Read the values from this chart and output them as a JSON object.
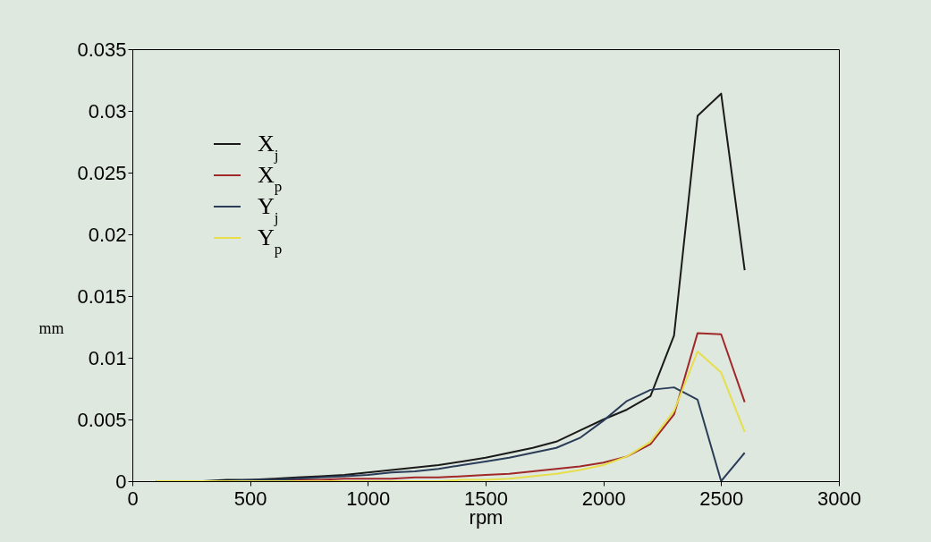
{
  "chart_data": {
    "type": "line",
    "xlabel": "rpm",
    "ylabel": "mm",
    "x": [
      100,
      200,
      300,
      400,
      500,
      600,
      700,
      800,
      900,
      1000,
      1100,
      1200,
      1300,
      1400,
      1500,
      1600,
      1700,
      1800,
      1900,
      2000,
      2100,
      2200,
      2300,
      2400,
      2500,
      2600
    ],
    "series": [
      {
        "name": "X$_{j}$",
        "color": "#1a1a1a",
        "values": [
          0,
          0,
          0,
          0.0001,
          0.0001,
          0.0002,
          0.0003,
          0.0004,
          0.0005,
          0.0007,
          0.0009,
          0.0011,
          0.0013,
          0.0016,
          0.0019,
          0.0023,
          0.0027,
          0.0032,
          0.0041,
          0.005,
          0.0058,
          0.0069,
          0.0118,
          0.0296,
          0.0314,
          0.0171
        ]
      },
      {
        "name": "X$_{p}$",
        "color": "#a02828",
        "values": [
          null,
          null,
          null,
          null,
          null,
          0.0001,
          0.0001,
          0.0001,
          0.0002,
          0.0002,
          0.0002,
          0.0003,
          0.0003,
          0.0004,
          0.0005,
          0.0006,
          0.0008,
          0.001,
          0.0012,
          0.0015,
          0.002,
          0.003,
          0.0054,
          0.012,
          0.0119,
          0.0064
        ]
      },
      {
        "name": "Y$_{j}$",
        "color": "#2a3c58",
        "values": [
          0,
          0,
          0,
          0,
          0.0001,
          0.0001,
          0.0002,
          0.0003,
          0.0004,
          0.0005,
          0.0007,
          0.0008,
          0.001,
          0.0013,
          0.0016,
          0.0019,
          0.0023,
          0.0027,
          0.0035,
          0.0049,
          0.0065,
          0.0074,
          0.0076,
          0.0066,
          0,
          0.0023
        ]
      },
      {
        "name": "Y$_{p}$",
        "color": "#e6de4a",
        "values": [
          0,
          0,
          0,
          0,
          0,
          0,
          0,
          0,
          0,
          0,
          0,
          0,
          0,
          0.0001,
          0.0001,
          0.0002,
          0.0004,
          0.0006,
          0.0009,
          0.0013,
          0.002,
          0.0032,
          0.0057,
          0.0105,
          0.0088,
          0.004
        ]
      }
    ],
    "xlim": [
      0,
      3000
    ],
    "xticks": [
      0,
      500,
      1000,
      1500,
      2000,
      2500,
      3000
    ],
    "ylim": [
      0,
      0.035
    ],
    "yticks": [
      0,
      0.005,
      0.01,
      0.015,
      0.02,
      0.025,
      0.03,
      0.035
    ],
    "legend": "top left",
    "grid": false,
    "marker": "none",
    "line_style": "solid"
  }
}
